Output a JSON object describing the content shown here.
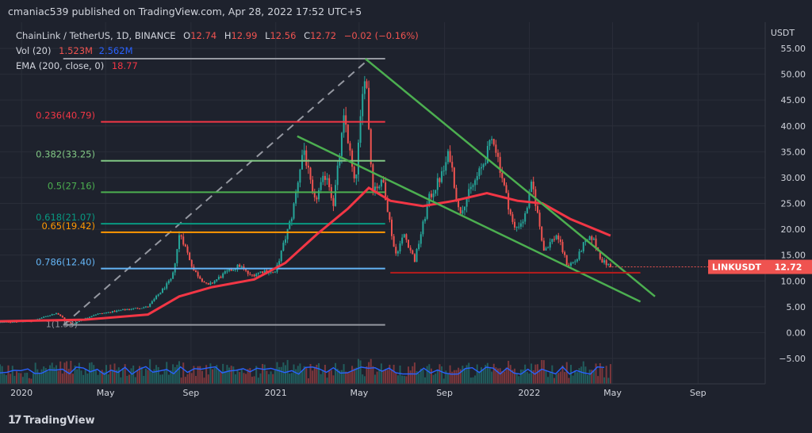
{
  "header": {
    "published": "cmaniac539 published on TradingView.com, Apr 28, 2022 17:52 UTC+5"
  },
  "footer": {
    "brand": "TradingView"
  },
  "legend": {
    "symbol": "ChainLink / TetherUS, 1D, BINANCE",
    "o_label": "O",
    "o_value": "12.74",
    "h_label": "H",
    "h_value": "12.99",
    "l_label": "L",
    "l_value": "12.56",
    "c_label": "C",
    "c_value": "12.72",
    "change": "−0.02 (−0.16%)",
    "vol_label": "Vol (20)",
    "vol_value1": "1.523M",
    "vol_value2": "2.562M",
    "ema_label": "EMA (200, close, 0)",
    "ema_value": "18.77"
  },
  "colors": {
    "background": "#1e222d",
    "up": "#26a69a",
    "down": "#ef5350",
    "ema": "#f23645",
    "trendline": "#4caf50",
    "vol_ma": "#2962ff",
    "text": "#d1d4dc",
    "grid": "#2a2e39"
  },
  "chart_data": {
    "type": "candlestick",
    "title": "ChainLink / TetherUS, 1D, BINANCE",
    "currency_label": "USDT",
    "y_ticks": [
      "55.00",
      "50.00",
      "45.00",
      "40.00",
      "35.00",
      "30.00",
      "25.00",
      "20.00",
      "15.00",
      "10.00",
      "5.00",
      "0.00",
      "−5.00"
    ],
    "y_range": [
      -10,
      58
    ],
    "x_ticks": [
      "2020",
      "May",
      "Sep",
      "2021",
      "May",
      "Sep",
      "2022",
      "May",
      "Sep"
    ],
    "last_price_label": "LINKUSDT",
    "last_price": "12.72",
    "price_path": [
      [
        "2019-12-01",
        2.0
      ],
      [
        "2020-01-15",
        2.2
      ],
      [
        "2020-02-20",
        3.8
      ],
      [
        "2020-03-13",
        1.6
      ],
      [
        "2020-04-15",
        3.5
      ],
      [
        "2020-06-01",
        4.5
      ],
      [
        "2020-07-01",
        5.0
      ],
      [
        "2020-07-20",
        8.0
      ],
      [
        "2020-08-05",
        10.5
      ],
      [
        "2020-08-16",
        19.5
      ],
      [
        "2020-09-05",
        12.0
      ],
      [
        "2020-09-25",
        9.0
      ],
      [
        "2020-10-20",
        11.5
      ],
      [
        "2020-11-10",
        13.0
      ],
      [
        "2020-11-25",
        11.0
      ],
      [
        "2020-12-15",
        12.0
      ],
      [
        "2020-12-31",
        11.5
      ],
      [
        "2021-01-10",
        16.0
      ],
      [
        "2021-01-25",
        23.0
      ],
      [
        "2021-02-10",
        36.0
      ],
      [
        "2021-02-25",
        25.0
      ],
      [
        "2021-03-15",
        31.0
      ],
      [
        "2021-03-25",
        25.0
      ],
      [
        "2021-04-10",
        42.0
      ],
      [
        "2021-04-25",
        28.0
      ],
      [
        "2021-05-10",
        52.0
      ],
      [
        "2021-05-20",
        28.0
      ],
      [
        "2021-06-05",
        29.0
      ],
      [
        "2021-06-22",
        15.0
      ],
      [
        "2021-07-05",
        19.0
      ],
      [
        "2021-07-20",
        14.0
      ],
      [
        "2021-08-10",
        26.0
      ],
      [
        "2021-08-30",
        31.0
      ],
      [
        "2021-09-08",
        35.0
      ],
      [
        "2021-09-22",
        23.0
      ],
      [
        "2021-10-10",
        28.0
      ],
      [
        "2021-10-25",
        32.0
      ],
      [
        "2021-11-10",
        38.0
      ],
      [
        "2021-11-28",
        27.0
      ],
      [
        "2021-12-10",
        20.0
      ],
      [
        "2021-12-25",
        22.0
      ],
      [
        "2022-01-05",
        29.0
      ],
      [
        "2022-01-22",
        16.0
      ],
      [
        "2022-02-10",
        19.0
      ],
      [
        "2022-02-25",
        13.0
      ],
      [
        "2022-03-10",
        14.0
      ],
      [
        "2022-03-20",
        17.0
      ],
      [
        "2022-04-02",
        18.5
      ],
      [
        "2022-04-15",
        14.0
      ],
      [
        "2022-04-28",
        12.72
      ]
    ],
    "ema_200": [
      [
        "2019-12-01",
        2.2
      ],
      [
        "2020-04-01",
        2.5
      ],
      [
        "2020-07-01",
        3.5
      ],
      [
        "2020-08-15",
        7.0
      ],
      [
        "2020-10-01",
        8.8
      ],
      [
        "2020-12-01",
        10.3
      ],
      [
        "2021-01-15",
        13.5
      ],
      [
        "2021-03-01",
        19.0
      ],
      [
        "2021-04-15",
        24.0
      ],
      [
        "2021-05-15",
        28.0
      ],
      [
        "2021-06-15",
        25.5
      ],
      [
        "2021-08-01",
        24.5
      ],
      [
        "2021-09-15",
        25.5
      ],
      [
        "2021-11-01",
        27.0
      ],
      [
        "2021-12-15",
        25.5
      ],
      [
        "2022-01-20",
        25.0
      ],
      [
        "2022-03-01",
        22.0
      ],
      [
        "2022-04-28",
        18.77
      ]
    ],
    "fibonacci": [
      {
        "label": "0.236(40.79)",
        "value": 40.79,
        "color": "#f23645"
      },
      {
        "label": "0.382(33.25)",
        "value": 33.25,
        "color": "#81c784"
      },
      {
        "label": "0.5(27.16)",
        "value": 27.16,
        "color": "#4caf50"
      },
      {
        "label": "0.618(21.07)",
        "value": 21.07,
        "color": "#089981"
      },
      {
        "label": "0.65(19.42)",
        "value": 19.42,
        "color": "#ff9800"
      },
      {
        "label": "0.786(12.40)",
        "value": 12.4,
        "color": "#64b5f6"
      }
    ],
    "fib_top": 53.0,
    "fib_bottom": 1.5,
    "fib_start": "2020-03-13",
    "fib_end": "2021-05-10",
    "fib_diag_label": "1(1.53)",
    "trendlines": [
      {
        "from": [
          "2021-05-10",
          53.0
        ],
        "to": [
          "2022-07-01",
          7.0
        ]
      },
      {
        "from": [
          "2021-02-01",
          38.0
        ],
        "to": [
          "2022-06-10",
          6.0
        ]
      }
    ],
    "support_line": {
      "value": 11.6,
      "from": "2021-06-15",
      "to": "2022-06-10"
    },
    "volume_ma_label": "Vol (20)"
  }
}
